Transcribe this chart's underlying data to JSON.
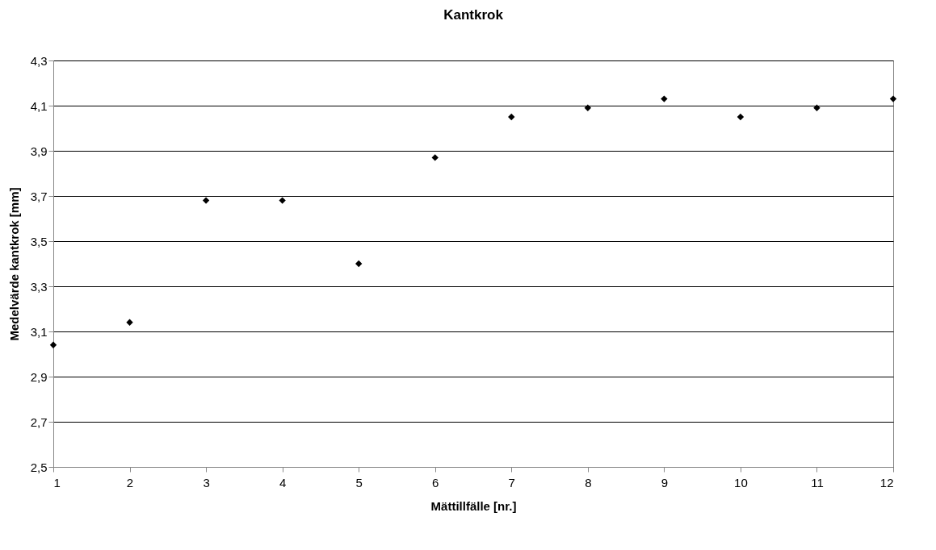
{
  "chart_data": {
    "type": "scatter",
    "title": "Kantkrok",
    "xlabel": "Mättillfälle [nr.]",
    "ylabel": "Medelvärde kantkrok [mm]",
    "x": [
      1,
      2,
      3,
      4,
      5,
      6,
      7,
      8,
      9,
      10,
      11,
      12
    ],
    "series": [
      {
        "color": "#000000",
        "values": [
          3.04,
          3.14,
          3.68,
          3.68,
          3.4,
          3.87,
          4.05,
          4.09,
          4.13,
          4.05,
          4.09,
          4.13
        ]
      }
    ],
    "xlim": [
      1,
      12
    ],
    "xticks": [
      1,
      2,
      3,
      4,
      5,
      6,
      7,
      8,
      9,
      10,
      11,
      12
    ],
    "ylim": [
      2.5,
      4.3
    ],
    "yticks": [
      {
        "value": 2.5,
        "label": "2,5"
      },
      {
        "value": 2.7,
        "label": "2,7"
      },
      {
        "value": 2.9,
        "label": "2,9"
      },
      {
        "value": 3.1,
        "label": "3,1"
      },
      {
        "value": 3.3,
        "label": "3,3"
      },
      {
        "value": 3.5,
        "label": "3,5"
      },
      {
        "value": 3.7,
        "label": "3,7"
      },
      {
        "value": 3.9,
        "label": "3,9"
      },
      {
        "value": 4.1,
        "label": "4,1"
      },
      {
        "value": 4.3,
        "label": "4,3"
      }
    ],
    "grid": "y",
    "marker": "diamond",
    "legend": false
  }
}
